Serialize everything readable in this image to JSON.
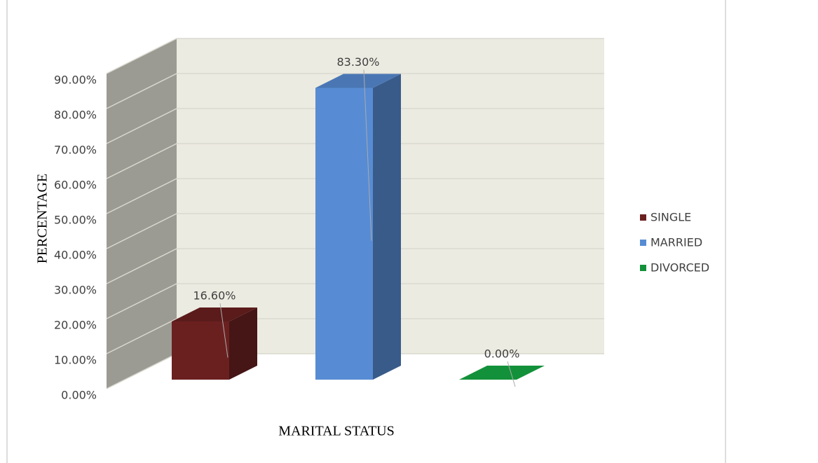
{
  "chart_data": {
    "type": "bar3d",
    "x_label": "MARITAL STATUS",
    "y_label": "PERCENTAGE",
    "categories": [
      "SINGLE",
      "MARRIED",
      "DIVORCED"
    ],
    "values": [
      16.6,
      83.3,
      0.0
    ],
    "value_labels": [
      "16.60%",
      "83.30%",
      "0.00%"
    ],
    "colors": [
      "#6b2020",
      "#578cd4",
      "#13913a"
    ],
    "ylim": [
      0,
      90
    ],
    "yticks": [
      {
        "value": 0,
        "label": "0.00%"
      },
      {
        "value": 10,
        "label": "10.00%"
      },
      {
        "value": 20,
        "label": "20.00%"
      },
      {
        "value": 30,
        "label": "30.00%"
      },
      {
        "value": 40,
        "label": "40.00%"
      },
      {
        "value": 50,
        "label": "50.00%"
      },
      {
        "value": 60,
        "label": "60.00%"
      },
      {
        "value": 70,
        "label": "70.00%"
      },
      {
        "value": 80,
        "label": "80.00%"
      },
      {
        "value": 90,
        "label": "90.00%"
      }
    ],
    "grid": true,
    "legend": "right"
  }
}
